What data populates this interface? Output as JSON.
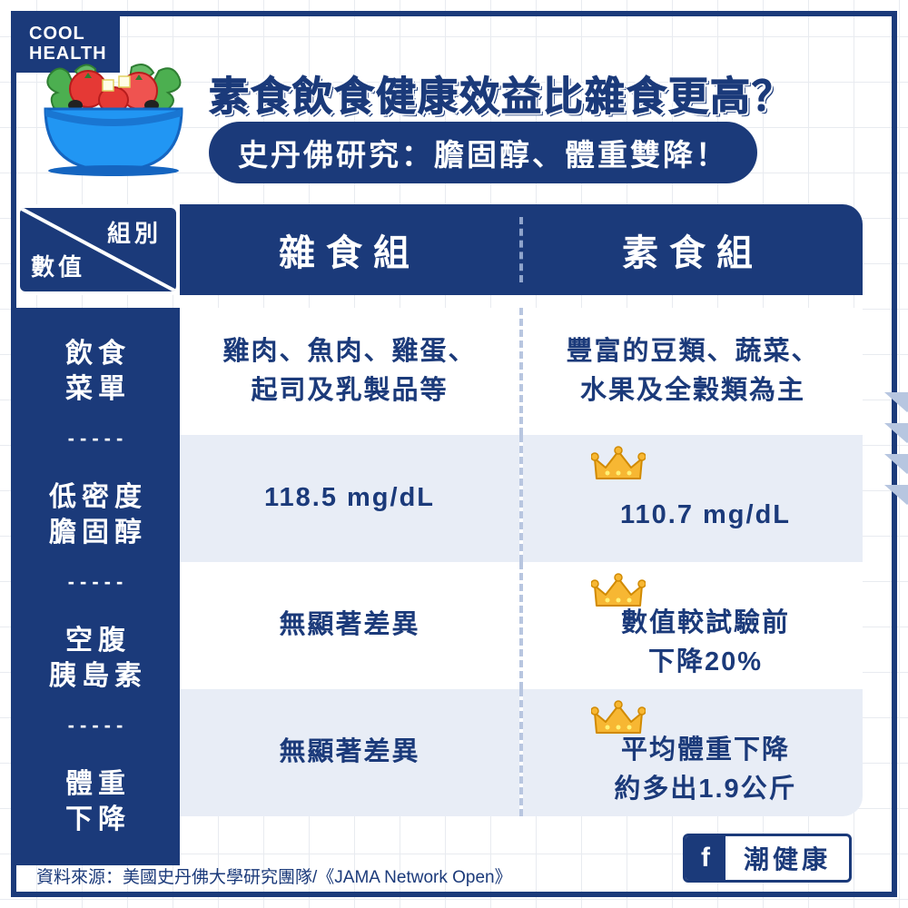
{
  "brand": {
    "line1": "COOL",
    "line2": "HEALTH"
  },
  "headline": "素食飲食健康效益比雜食更高？",
  "subtitle": "史丹佛研究：膽固醇、體重雙降！",
  "colors": {
    "primary": "#1b3a7a",
    "row_alt": "#e8edf6",
    "grid": "#e8ebf0",
    "arrow": "#b7c6e0",
    "crown_fill": "#f7b733",
    "crown_stroke": "#d18a00",
    "bowl": "#2196f3",
    "bowl_dark": "#1976d2",
    "lettuce": "#4caf50",
    "lettuce_dark": "#2e7d32",
    "tomato": "#e53935",
    "tomato_light": "#ef5350",
    "feta": "#fffde7",
    "olive": "#212121"
  },
  "corner": {
    "top": "組別",
    "bottom": "數值"
  },
  "columns": [
    "雜食組",
    "素食組"
  ],
  "rows": [
    {
      "label_l1": "飲食",
      "label_l2": "菜單",
      "omni_l1": "雞肉、魚肉、雞蛋、",
      "omni_l2": "起司及乳製品等",
      "vege_l1": "豐富的豆類、蔬菜、",
      "vege_l2": "水果及全穀類為主",
      "vege_crown": false
    },
    {
      "label_l1": "低密度",
      "label_l2": "膽固醇",
      "omni_l1": "118.5 mg/dL",
      "omni_l2": "",
      "vege_l1": "110.7 mg/dL",
      "vege_l2": "",
      "vege_crown": true
    },
    {
      "label_l1": "空腹",
      "label_l2": "胰島素",
      "omni_l1": "無顯著差異",
      "omni_l2": "",
      "vege_l1": "數值較試驗前",
      "vege_l2": "下降20%",
      "vege_crown": true
    },
    {
      "label_l1": "體重",
      "label_l2": "下降",
      "omni_l1": "無顯著差異",
      "omni_l2": "",
      "vege_l1": "平均體重下降",
      "vege_l2": "約多出1.9公斤",
      "vege_crown": true
    }
  ],
  "source": "資料來源：美國史丹佛大學研究團隊/《JAMA Network Open》",
  "fb": {
    "icon": "f",
    "name": "潮健康"
  }
}
